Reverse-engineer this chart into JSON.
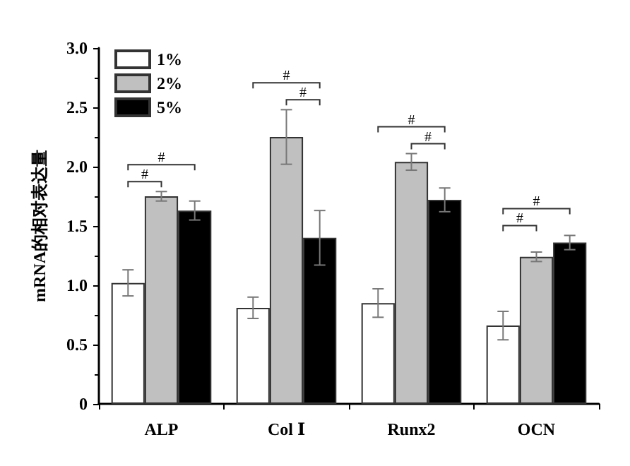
{
  "chart_data": {
    "type": "bar",
    "ylabel": "mRNA的相对表达量",
    "categories": [
      "ALP",
      "Col Ⅰ",
      "Runx2",
      "OCN"
    ],
    "series": [
      {
        "name": "1%",
        "color": "#ffffff",
        "values": [
          1.02,
          0.81,
          0.85,
          0.66
        ],
        "errors": [
          0.11,
          0.09,
          0.12,
          0.12
        ]
      },
      {
        "name": "2%",
        "color": "#c0c0c0",
        "values": [
          1.75,
          2.25,
          2.04,
          1.24
        ],
        "errors": [
          0.04,
          0.23,
          0.07,
          0.04
        ]
      },
      {
        "name": "5%",
        "color": "#000000",
        "values": [
          1.63,
          1.4,
          1.72,
          1.36
        ],
        "errors": [
          0.08,
          0.23,
          0.1,
          0.06
        ]
      }
    ],
    "ylim": [
      0,
      3
    ],
    "yticks": [
      0,
      0.5,
      {
        "value": 1,
        "label": "1.0"
      },
      1.5,
      {
        "value": 2,
        "label": "2.0"
      },
      2.5,
      {
        "value": 3,
        "label": "3.0"
      }
    ],
    "legend": "top left",
    "grid": false,
    "annotations": [
      "#",
      "#",
      "#",
      "#",
      "#",
      "#",
      "#",
      "#"
    ]
  }
}
